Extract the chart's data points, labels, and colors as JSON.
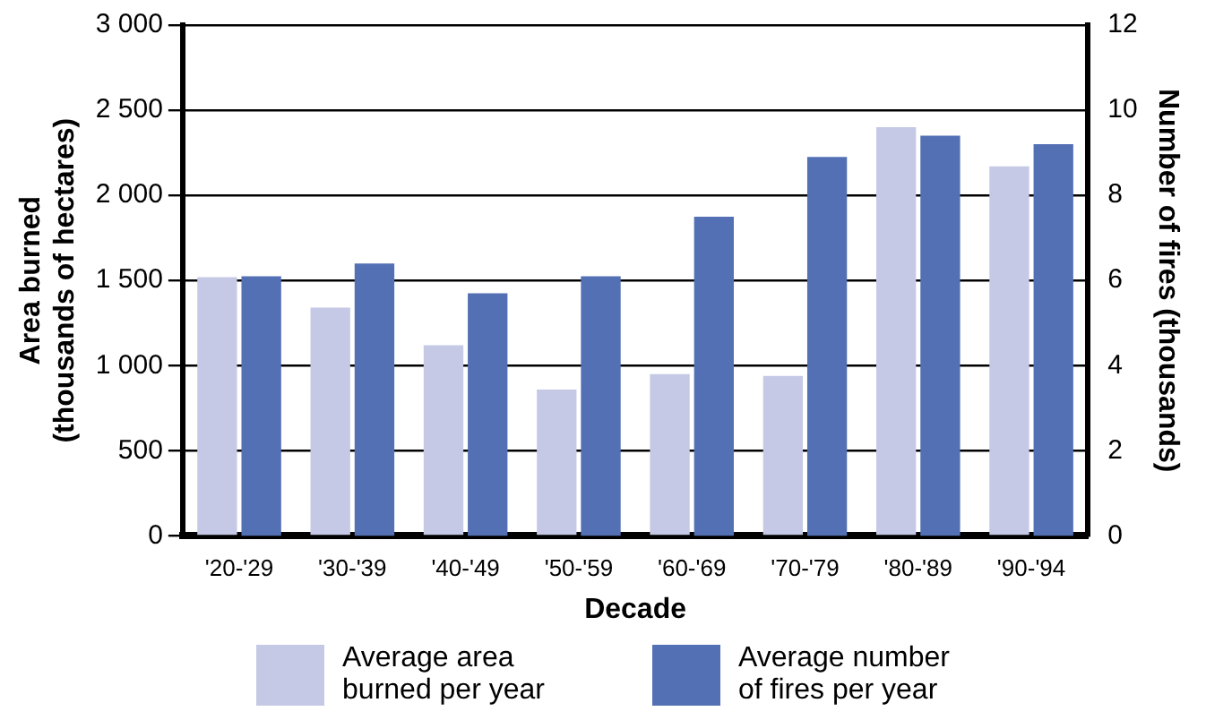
{
  "chart_data": {
    "type": "bar",
    "xlabel": "Decade",
    "ylabel": "Area burned\n(thousands of hectares)",
    "y2label": "Number of fires (thousands)",
    "categories": [
      "'20-'29",
      "'30-'39",
      "'40-'49",
      "'50-'59",
      "'60-'69",
      "'70-'79",
      "'80-'89",
      "'90-'94"
    ],
    "series": [
      {
        "name": "Average area\nburned per year",
        "color": "#c5c9e5",
        "values": [
          1520,
          1340,
          1120,
          860,
          950,
          940,
          2400,
          2170
        ]
      },
      {
        "name": "Average number\nof fires per year",
        "color": "#5470b4",
        "axis": "y2",
        "values": [
          6.1,
          6.4,
          5.7,
          6.1,
          7.5,
          8.9,
          9.4,
          9.2
        ]
      }
    ],
    "ylim": [
      0,
      3000
    ],
    "yticks": [
      0,
      {
        "value": 500,
        "label": "500"
      },
      {
        "value": 1000,
        "label": "1 000"
      },
      {
        "value": 1500,
        "label": "1 500"
      },
      {
        "value": 2000,
        "label": "2 000"
      },
      {
        "value": 2500,
        "label": "2 500"
      },
      {
        "value": 3000,
        "label": "3 000"
      }
    ],
    "y2lim": [
      0,
      12
    ],
    "y2ticks": [
      0,
      2,
      4,
      6,
      8,
      10,
      12
    ],
    "grid": "y",
    "legend": "bottom"
  }
}
